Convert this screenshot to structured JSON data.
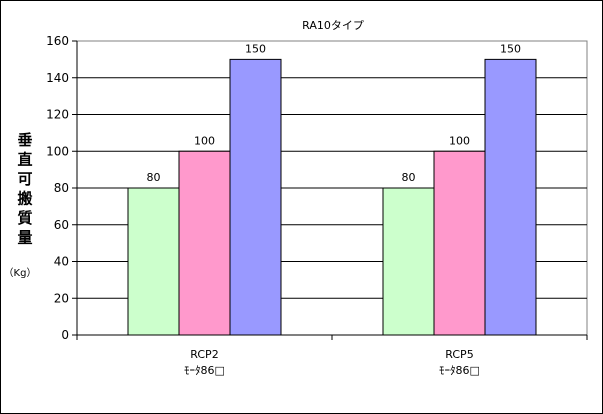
{
  "chart_data": {
    "type": "bar",
    "title": "RA10タイプ",
    "categories": [
      [
        "RCP2",
        "ﾓｰﾀ86□"
      ],
      [
        "RCP5",
        "ﾓｰﾀ86□"
      ]
    ],
    "series": [
      {
        "values": [
          80,
          80
        ],
        "color": "#ccffcc"
      },
      {
        "values": [
          100,
          100
        ],
        "color": "#ff99cc"
      },
      {
        "values": [
          150,
          150
        ],
        "color": "#9999ff"
      }
    ],
    "ylabel": [
      "垂",
      "直",
      "可",
      "搬",
      "質",
      "量"
    ],
    "yunit": "（Kg）",
    "ylim": [
      0,
      160
    ],
    "yticks": [
      0,
      20,
      40,
      60,
      80,
      100,
      120,
      140,
      160
    ],
    "grid": true,
    "legend": "none"
  }
}
